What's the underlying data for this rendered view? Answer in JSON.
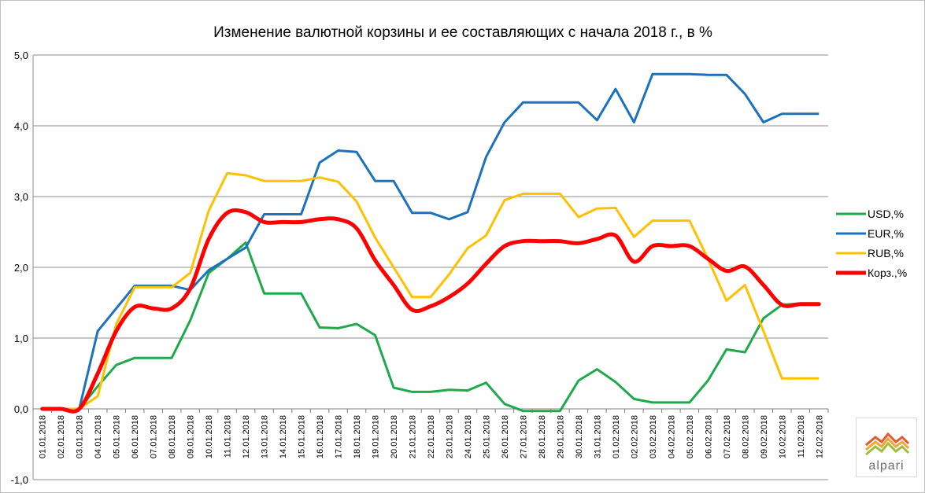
{
  "chart_data": {
    "type": "line",
    "title": "Изменение валютной корзины и ее составляющих с начала 2018 г., в %",
    "xlabel": "",
    "ylabel": "",
    "ylim": [
      -1.0,
      5.0
    ],
    "yticks": [
      "-1,0",
      "0,0",
      "1,0",
      "2,0",
      "3,0",
      "4,0",
      "5,0"
    ],
    "ytick_values": [
      -1,
      0,
      1,
      2,
      3,
      4,
      5
    ],
    "grid": true,
    "legend_position": "right",
    "categories": [
      "01.01.2018",
      "02.01.2018",
      "03.01.2018",
      "04.01.2018",
      "05.01.2018",
      "06.01.2018",
      "07.01.2018",
      "08.01.2018",
      "09.01.2018",
      "10.01.2018",
      "11.01.2018",
      "12.01.2018",
      "13.01.2018",
      "14.01.2018",
      "15.01.2018",
      "16.01.2018",
      "17.01.2018",
      "18.01.2018",
      "19.01.2018",
      "20.01.2018",
      "21.01.2018",
      "22.01.2018",
      "23.01.2018",
      "24.01.2018",
      "25.01.2018",
      "26.01.2018",
      "27.01.2018",
      "28.01.2018",
      "29.01.2018",
      "30.01.2018",
      "31.01.2018",
      "01.02.2018",
      "02.02.2018",
      "03.02.2018",
      "04.02.2018",
      "05.02.2018",
      "06.02.2018",
      "07.02.2018",
      "08.02.2018",
      "09.02.2018",
      "10.02.2018",
      "11.02.2018",
      "12.02.2018"
    ],
    "series": [
      {
        "name": "USD,%",
        "color": "#1eaa4b",
        "width": 3,
        "smooth": false,
        "values": [
          0,
          0,
          0,
          0.32,
          0.62,
          0.72,
          0.72,
          0.72,
          1.25,
          1.92,
          2.12,
          2.35,
          1.63,
          1.63,
          1.63,
          1.15,
          1.14,
          1.2,
          1.04,
          0.3,
          0.24,
          0.24,
          0.27,
          0.26,
          0.37,
          0.07,
          -0.03,
          -0.03,
          -0.03,
          0.4,
          0.56,
          0.38,
          0.14,
          0.09,
          0.09,
          0.09,
          0.4,
          0.84,
          0.8,
          1.28,
          1.47,
          1.49,
          1.49
        ]
      },
      {
        "name": "EUR,%",
        "color": "#1c72be",
        "width": 3,
        "smooth": false,
        "values": [
          0,
          0,
          0,
          1.1,
          1.42,
          1.74,
          1.74,
          1.74,
          1.68,
          1.96,
          2.12,
          2.28,
          2.75,
          2.75,
          2.75,
          3.48,
          3.65,
          3.63,
          3.22,
          3.22,
          2.77,
          2.77,
          2.68,
          2.78,
          3.56,
          4.05,
          4.33,
          4.33,
          4.33,
          4.33,
          4.08,
          4.52,
          4.05,
          4.73,
          4.73,
          4.73,
          4.72,
          4.72,
          4.45,
          4.05,
          4.17,
          4.17,
          4.17
        ]
      },
      {
        "name": "RUB,%",
        "color": "#ffc000",
        "width": 3,
        "smooth": false,
        "values": [
          0,
          0,
          0,
          0.18,
          1.2,
          1.72,
          1.72,
          1.72,
          1.92,
          2.8,
          3.33,
          3.3,
          3.22,
          3.22,
          3.22,
          3.27,
          3.21,
          2.93,
          2.42,
          2.0,
          1.58,
          1.58,
          1.9,
          2.27,
          2.45,
          2.95,
          3.04,
          3.04,
          3.04,
          2.71,
          2.83,
          2.84,
          2.43,
          2.66,
          2.66,
          2.66,
          2.12,
          1.53,
          1.75,
          1.1,
          0.43,
          0.43,
          0.43
        ]
      },
      {
        "name": "Корз.,%",
        "color": "#ff0000",
        "width": 5,
        "smooth": true,
        "values": [
          0,
          0,
          0,
          0.5,
          1.1,
          1.44,
          1.42,
          1.42,
          1.7,
          2.4,
          2.77,
          2.78,
          2.64,
          2.64,
          2.64,
          2.68,
          2.68,
          2.55,
          2.1,
          1.75,
          1.4,
          1.45,
          1.58,
          1.77,
          2.05,
          2.3,
          2.37,
          2.37,
          2.37,
          2.34,
          2.4,
          2.45,
          2.08,
          2.3,
          2.3,
          2.3,
          2.12,
          1.95,
          2.01,
          1.75,
          1.47,
          1.48,
          1.48
        ]
      }
    ]
  },
  "logo": {
    "text": "alpari"
  }
}
